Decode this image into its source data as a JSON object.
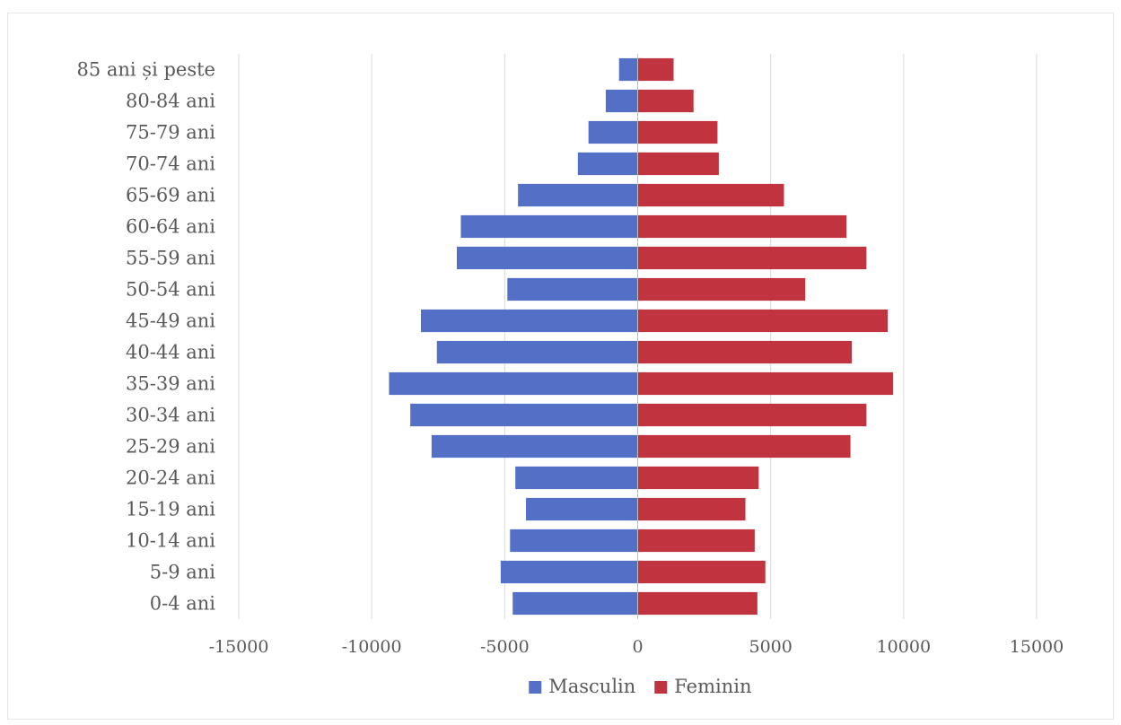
{
  "chart_data": {
    "type": "bar",
    "orientation": "horizontal",
    "categories": [
      "0-4 ani",
      "5-9 ani",
      "10-14 ani",
      "15-19 ani",
      "20-24 ani",
      "25-29 ani",
      "30-34 ani",
      "35-39 ani",
      "40-44 ani",
      "45-49 ani",
      "50-54 ani",
      "55-59 ani",
      "60-64 ani",
      "65-69 ani",
      "70-74 ani",
      "75-79 ani",
      "80-84 ani",
      "85 ani și peste"
    ],
    "series": [
      {
        "name": "Masculin",
        "color": "#5470c6",
        "values": [
          -4700,
          -5150,
          -4800,
          -4200,
          -4600,
          -7750,
          -8550,
          -9350,
          -7550,
          -8150,
          -4900,
          -6800,
          -6650,
          -4500,
          -2250,
          -1850,
          -1200,
          -700
        ]
      },
      {
        "name": "Feminin",
        "color": "#c1343f",
        "values": [
          4500,
          4800,
          4400,
          4050,
          4550,
          8000,
          8600,
          9600,
          8050,
          9400,
          6300,
          8600,
          7850,
          5500,
          3050,
          3000,
          2100,
          1350
        ]
      }
    ],
    "xlim": [
      -15000,
      15000
    ],
    "xticks": [
      -15000,
      -10000,
      -5000,
      0,
      5000,
      10000,
      15000
    ],
    "grid": true,
    "legend": "bottom",
    "title": "",
    "xlabel": "",
    "ylabel": ""
  }
}
